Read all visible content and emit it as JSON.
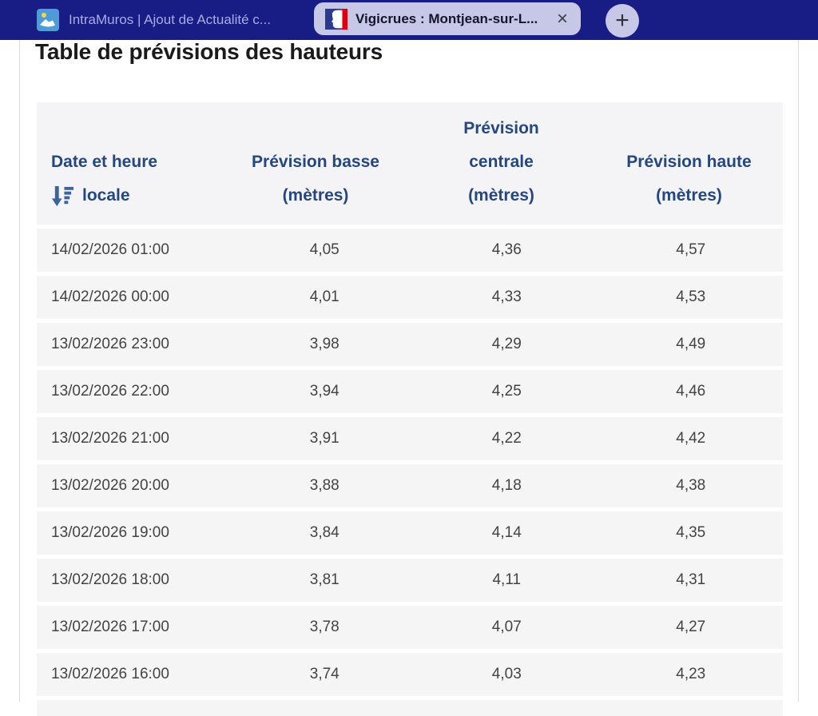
{
  "browser": {
    "tabs": [
      {
        "title": "IntraMuros | Ajout de Actualité c...",
        "icon": "intramuros-favicon",
        "active": false
      },
      {
        "title": "Vigicrues : Montjean-sur-L...",
        "icon": "marianne-favicon",
        "active": true
      }
    ],
    "close_glyph": "×",
    "new_tab_glyph": "+"
  },
  "page": {
    "title": "Table de prévisions des hauteurs",
    "table": {
      "columns": [
        {
          "line1": "Date et heure",
          "line2": "locale",
          "sort_icon": "sort-descending",
          "align": "left"
        },
        {
          "line1": "Prévision basse",
          "line2": "(mètres)",
          "align": "center"
        },
        {
          "line1": "Prévision",
          "line2": "centrale",
          "line3": "(mètres)",
          "align": "center"
        },
        {
          "line1": "Prévision haute",
          "line2": "(mètres)",
          "align": "center"
        }
      ],
      "rows": [
        [
          "14/02/2026 01:00",
          "4,05",
          "4,36",
          "4,57"
        ],
        [
          "14/02/2026 00:00",
          "4,01",
          "4,33",
          "4,53"
        ],
        [
          "13/02/2026 23:00",
          "3,98",
          "4,29",
          "4,49"
        ],
        [
          "13/02/2026 22:00",
          "3,94",
          "4,25",
          "4,46"
        ],
        [
          "13/02/2026 21:00",
          "3,91",
          "4,22",
          "4,42"
        ],
        [
          "13/02/2026 20:00",
          "3,88",
          "4,18",
          "4,38"
        ],
        [
          "13/02/2026 19:00",
          "3,84",
          "4,14",
          "4,35"
        ],
        [
          "13/02/2026 18:00",
          "3,81",
          "4,11",
          "4,31"
        ],
        [
          "13/02/2026 17:00",
          "3,78",
          "4,07",
          "4,27"
        ],
        [
          "13/02/2026 16:00",
          "3,74",
          "4,03",
          "4,23"
        ]
      ]
    }
  },
  "colors": {
    "tab_bar_bg": "#181c85",
    "inactive_tab_text": "#a9ade7",
    "active_tab_bg": "#c7c7e7",
    "active_tab_text": "#15152e",
    "title_text": "#1a1a1a",
    "header_text": "#25477d",
    "sort_icon": "#3d639a",
    "row_bg": "#f5f5f6",
    "row_text": "#434343",
    "marianne_blue": "#2b3a8f",
    "marianne_red": "#e1000f",
    "intramuros_blue": "#4f9bd8"
  }
}
